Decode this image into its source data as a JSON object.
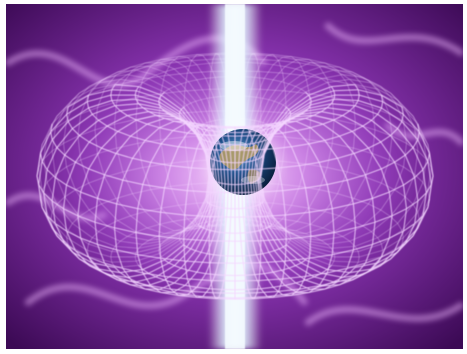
{
  "image": {
    "subject": "earth-torus-field",
    "colors": {
      "background_deep": "#3c0a55",
      "background_mid": "#7a2aa0",
      "glow": "#d98cf0",
      "wireframe": "#f4d6ff",
      "beam": "#e8f6ff",
      "earth_ocean": "#1d4f8a",
      "earth_land": "#b59a5a"
    }
  }
}
